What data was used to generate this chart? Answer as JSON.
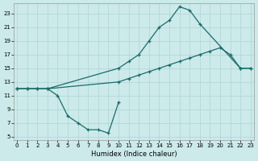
{
  "xlabel": "Humidex (Indice chaleur)",
  "bg_color": "#cceaea",
  "line_color": "#1a6b6b",
  "grid_color": "#aed4d4",
  "xticks": [
    0,
    1,
    2,
    3,
    4,
    5,
    6,
    7,
    8,
    9,
    10,
    11,
    12,
    13,
    14,
    15,
    16,
    17,
    18,
    19,
    20,
    21,
    22,
    23
  ],
  "yticks": [
    5,
    7,
    9,
    11,
    13,
    15,
    17,
    19,
    21,
    23
  ],
  "line1_x": [
    0,
    1,
    2,
    3,
    4,
    5,
    6,
    7,
    8,
    9,
    10
  ],
  "line1_y": [
    12,
    12,
    12,
    12,
    11,
    8,
    7,
    6,
    6,
    5.5,
    10
  ],
  "line2_x": [
    0,
    1,
    2,
    3,
    10,
    11,
    12,
    13,
    14,
    15,
    16,
    17,
    18,
    19,
    20,
    21,
    22,
    23
  ],
  "line2_y": [
    12,
    12,
    12,
    12,
    13,
    13.5,
    14,
    14.5,
    15,
    15.5,
    16,
    16.5,
    17,
    17.5,
    18,
    17,
    15,
    15
  ],
  "line3_x": [
    0,
    1,
    2,
    3,
    10,
    11,
    12,
    13,
    14,
    15,
    16,
    17,
    18,
    22,
    23
  ],
  "line3_y": [
    12,
    12,
    12,
    12,
    15,
    16,
    17,
    19,
    21,
    22,
    24,
    23.5,
    21.5,
    15,
    15
  ]
}
